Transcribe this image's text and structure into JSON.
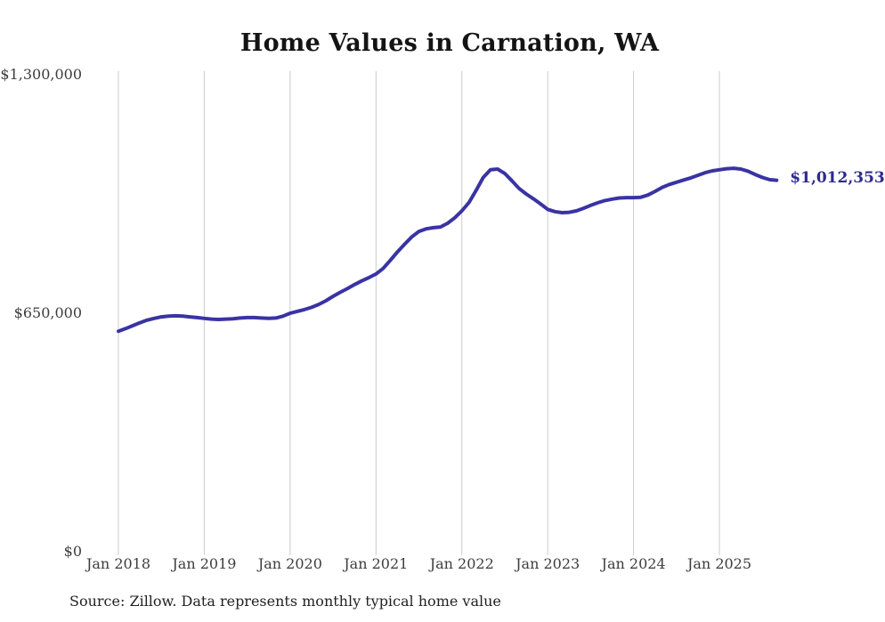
{
  "title": "Home Values in Carnation, WA",
  "source_note": "Source: Zillow. Data represents monthly typical home value",
  "end_label": "$1,012,353",
  "colors": {
    "line": "#3a33a3",
    "end_label_text": "#2d2a8e",
    "grid": "#cccccc",
    "axis_text": "#3d3d3d",
    "title_text": "#141414",
    "background": "#ffffff"
  },
  "chart_data": {
    "type": "line",
    "title": "Home Values in Carnation, WA",
    "xlabel": "",
    "ylabel": "",
    "ylim": [
      0,
      1300000
    ],
    "grid": "vertical-only",
    "legend": "none",
    "series_name": "Monthly typical home value",
    "x_tick_labels": [
      "Jan 2018",
      "Jan 2019",
      "Jan 2020",
      "Jan 2021",
      "Jan 2022",
      "Jan 2023",
      "Jan 2024",
      "Jan 2025"
    ],
    "y_ticks": [
      {
        "label": "$0",
        "value": 0
      },
      {
        "label": "$650,000",
        "value": 650000
      },
      {
        "label": "$1,300,000",
        "value": 1300000
      }
    ],
    "last_point_label": "$1,012,353",
    "months": [
      "2018-01",
      "2018-02",
      "2018-03",
      "2018-04",
      "2018-05",
      "2018-06",
      "2018-07",
      "2018-08",
      "2018-09",
      "2018-10",
      "2018-11",
      "2018-12",
      "2019-01",
      "2019-02",
      "2019-03",
      "2019-04",
      "2019-05",
      "2019-06",
      "2019-07",
      "2019-08",
      "2019-09",
      "2019-10",
      "2019-11",
      "2019-12",
      "2020-01",
      "2020-02",
      "2020-03",
      "2020-04",
      "2020-05",
      "2020-06",
      "2020-07",
      "2020-08",
      "2020-09",
      "2020-10",
      "2020-11",
      "2020-12",
      "2021-01",
      "2021-02",
      "2021-03",
      "2021-04",
      "2021-05",
      "2021-06",
      "2021-07",
      "2021-08",
      "2021-09",
      "2021-10",
      "2021-11",
      "2021-12",
      "2022-01",
      "2022-02",
      "2022-03",
      "2022-04",
      "2022-05",
      "2022-06",
      "2022-07",
      "2022-08",
      "2022-09",
      "2022-10",
      "2022-11",
      "2022-12",
      "2023-01",
      "2023-02",
      "2023-03",
      "2023-04",
      "2023-05",
      "2023-06",
      "2023-07",
      "2023-08",
      "2023-09",
      "2023-10",
      "2023-11",
      "2023-12",
      "2024-01",
      "2024-02",
      "2024-03",
      "2024-04",
      "2024-05",
      "2024-06",
      "2024-07",
      "2024-08",
      "2024-09",
      "2024-10",
      "2024-11",
      "2024-12",
      "2025-01",
      "2025-02",
      "2025-03",
      "2025-04",
      "2025-05",
      "2025-06",
      "2025-07",
      "2025-08",
      "2025-09"
    ],
    "values": [
      601000,
      608000,
      616000,
      624000,
      631000,
      636000,
      640000,
      642000,
      643000,
      642000,
      640000,
      638000,
      636000,
      634000,
      633000,
      634000,
      635000,
      637000,
      638000,
      638000,
      637000,
      636000,
      637000,
      642000,
      650000,
      655000,
      660000,
      666000,
      674000,
      684000,
      696000,
      707000,
      717000,
      728000,
      738000,
      747000,
      757000,
      772000,
      794000,
      817000,
      838000,
      858000,
      873000,
      880000,
      883000,
      885000,
      895000,
      910000,
      929000,
      952000,
      985000,
      1020000,
      1041000,
      1043000,
      1031000,
      1011000,
      990000,
      975000,
      962000,
      948000,
      933000,
      927000,
      924000,
      925000,
      929000,
      936000,
      944000,
      951000,
      957000,
      961000,
      964000,
      965000,
      965000,
      966000,
      972000,
      982000,
      993000,
      1001000,
      1007000,
      1013000,
      1019000,
      1026000,
      1033000,
      1038000,
      1041000,
      1044000,
      1045000,
      1043000,
      1037000,
      1028000,
      1020000,
      1014000,
      1012353
    ]
  }
}
